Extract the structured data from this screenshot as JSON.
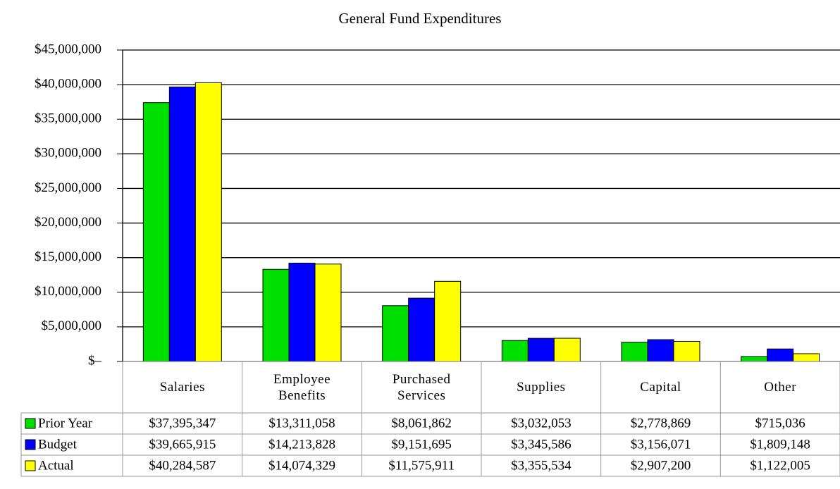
{
  "chart_data": {
    "type": "bar",
    "title": "General Fund Expenditures",
    "categories": [
      "Salaries",
      "Employee Benefits",
      "Purchased Services",
      "Supplies",
      "Capital",
      "Other"
    ],
    "series": [
      {
        "name": "Prior Year",
        "color": "#00e000",
        "values": [
          37395347,
          13311058,
          8061862,
          3032053,
          2778869,
          715036
        ],
        "value_labels": [
          "$37,395,347",
          "$13,311,058",
          "$8,061,862",
          "$3,032,053",
          "$2,778,869",
          "$715,036"
        ]
      },
      {
        "name": "Budget",
        "color": "#0000ff",
        "values": [
          39665915,
          14213828,
          9151695,
          3345586,
          3156071,
          1809148
        ],
        "value_labels": [
          "$39,665,915",
          "$14,213,828",
          "$9,151,695",
          "$3,345,586",
          "$3,156,071",
          "$1,809,148"
        ]
      },
      {
        "name": "Actual",
        "color": "#ffff00",
        "values": [
          40284587,
          14074329,
          11575911,
          3355534,
          2907200,
          1122005
        ],
        "value_labels": [
          "$40,284,587",
          "$14,074,329",
          "$11,575,911",
          "$3,355,534",
          "$2,907,200",
          "$1,122,005"
        ]
      }
    ],
    "ylim": [
      0,
      45000000
    ],
    "yticks": [
      {
        "value": 0,
        "label": "$–"
      },
      {
        "value": 5000000,
        "label": "$5,000,000"
      },
      {
        "value": 10000000,
        "label": "$10,000,000"
      },
      {
        "value": 15000000,
        "label": "$15,000,000"
      },
      {
        "value": 20000000,
        "label": "$20,000,000"
      },
      {
        "value": 25000000,
        "label": "$25,000,000"
      },
      {
        "value": 30000000,
        "label": "$30,000,000"
      },
      {
        "value": 35000000,
        "label": "$35,000,000"
      },
      {
        "value": 40000000,
        "label": "$40,000,000"
      },
      {
        "value": 45000000,
        "label": "$45,000,000"
      }
    ],
    "grid": true
  }
}
